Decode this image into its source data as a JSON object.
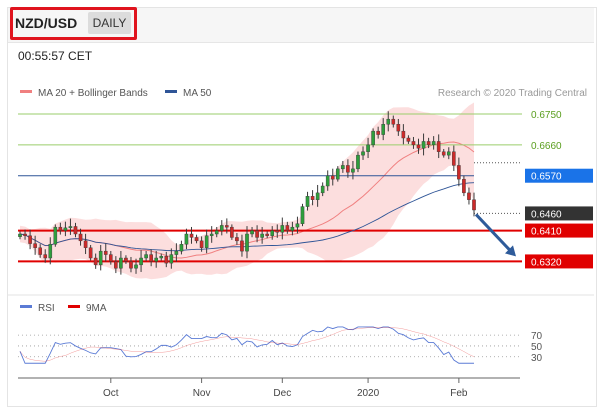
{
  "header": {
    "symbol": "NZD/USD",
    "timeframe": "DAILY",
    "time": "00:55:57 CET"
  },
  "chart_data": [
    {
      "type": "candlestick",
      "legend": [
        {
          "name": "MA 20 + Bollinger Bands",
          "color": "#f08080"
        },
        {
          "name": "MA 50",
          "color": "#2f5597"
        }
      ],
      "legend_placement": "top-left",
      "attribution": "Research © 2020 Trading Central",
      "x_tick_labels": [
        "Oct",
        "Nov",
        "Dec",
        "2020",
        "Feb"
      ],
      "ylim": [
        0.626,
        0.6785
      ],
      "levels": [
        {
          "label": "0.6750",
          "value": 0.675,
          "style": "green-line"
        },
        {
          "label": "0.6660",
          "value": 0.666,
          "style": "green-line"
        },
        {
          "label": "0.6570",
          "value": 0.657,
          "style": "blue-line-badge"
        },
        {
          "label": "0.6460",
          "value": 0.646,
          "style": "current-price"
        },
        {
          "label": "0.6410",
          "value": 0.641,
          "style": "red-line-badge"
        },
        {
          "label": "0.6320",
          "value": 0.632,
          "style": "red-line-badge"
        }
      ],
      "closes": [
        0.64,
        0.6395,
        0.6372,
        0.636,
        0.634,
        0.633,
        0.637,
        0.642,
        0.641,
        0.6418,
        0.6422,
        0.64,
        0.638,
        0.636,
        0.633,
        0.631,
        0.635,
        0.634,
        0.632,
        0.63,
        0.633,
        0.632,
        0.63,
        0.631,
        0.633,
        0.634,
        0.632,
        0.633,
        0.6335,
        0.6315,
        0.634,
        0.635,
        0.637,
        0.64,
        0.639,
        0.638,
        0.636,
        0.6395,
        0.64,
        0.641,
        0.6425,
        0.642,
        0.639,
        0.638,
        0.635,
        0.64,
        0.641,
        0.639,
        0.64,
        0.6395,
        0.641,
        0.6405,
        0.6425,
        0.641,
        0.642,
        0.643,
        0.648,
        0.651,
        0.65,
        0.652,
        0.654,
        0.657,
        0.656,
        0.659,
        0.66,
        0.658,
        0.659,
        0.663,
        0.664,
        0.666,
        0.67,
        0.669,
        0.672,
        0.6735,
        0.672,
        0.67,
        0.668,
        0.667,
        0.666,
        0.665,
        0.667,
        0.666,
        0.667,
        0.664,
        0.663,
        0.664,
        0.66,
        0.656,
        0.652,
        0.65,
        0.647
      ],
      "forecast_arrow": {
        "from": 0.646,
        "to": 0.632,
        "color": "#2e5b9a"
      }
    },
    {
      "type": "line",
      "legend": [
        {
          "name": "RSI",
          "color": "#5b7bd5"
        },
        {
          "name": "9MA",
          "color": "#e00000"
        }
      ],
      "ylim": [
        0,
        100
      ],
      "y_tick_labels": [
        "70",
        "50",
        "30"
      ],
      "y_ticks": [
        70,
        50,
        30
      ],
      "x_tick_labels": [
        "Oct",
        "Nov",
        "Dec",
        "2020",
        "Feb"
      ]
    }
  ]
}
